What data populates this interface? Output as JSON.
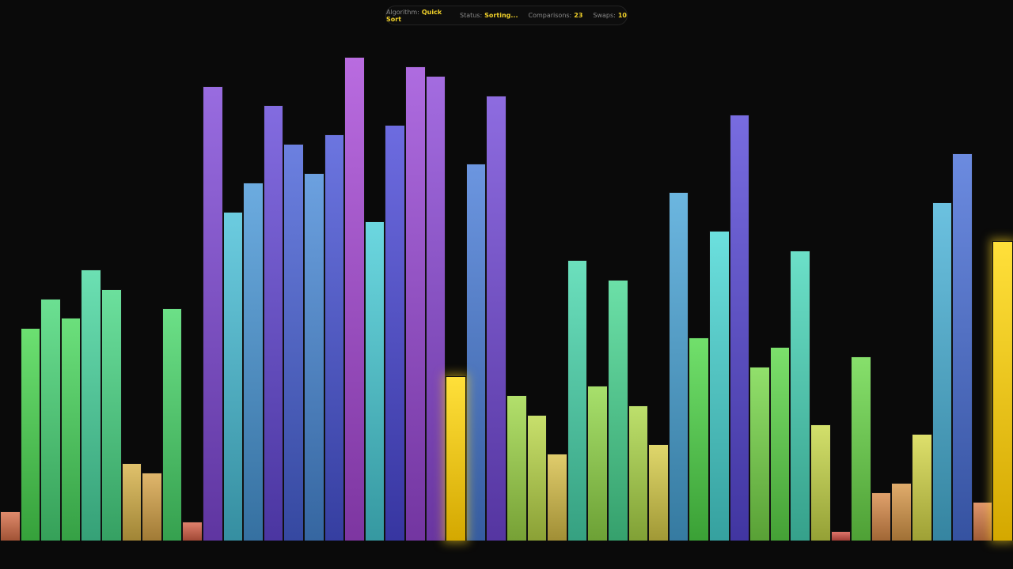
{
  "status": {
    "algorithm_label": "Algorithm:",
    "algorithm": "Quick Sort",
    "status_label": "Status:",
    "status": "Sorting...",
    "comparisons_label": "Comparisons:",
    "comparisons": "23",
    "swaps_label": "Swaps:",
    "swaps": "10"
  },
  "colors": {
    "highlight": "#f5d020",
    "background": "#0a0a0a"
  },
  "chart_data": {
    "type": "bar",
    "values": [
      3,
      22,
      25,
      23,
      28,
      26,
      8,
      7,
      24,
      2,
      47,
      34,
      37,
      45,
      41,
      38,
      42,
      50,
      33,
      43,
      49,
      48,
      17,
      39,
      46,
      15,
      13,
      9,
      29,
      16,
      27,
      14,
      10,
      36,
      21,
      32,
      44,
      18,
      20,
      30,
      12,
      1,
      19,
      5,
      6,
      11,
      35,
      40,
      4,
      31
    ],
    "ylim": [
      0,
      50
    ],
    "highlighted_indices": [
      22,
      49
    ]
  }
}
